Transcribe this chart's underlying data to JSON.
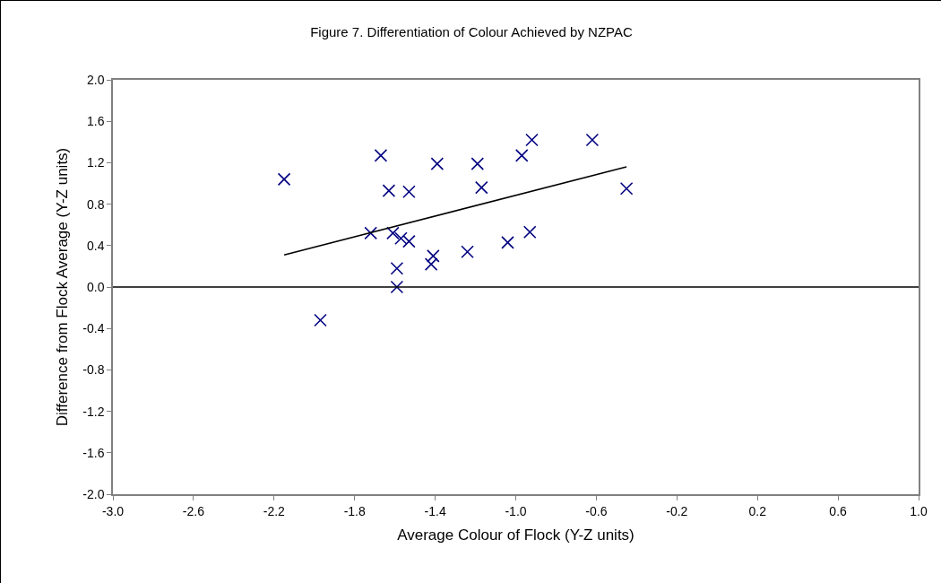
{
  "chart_data": {
    "type": "scatter",
    "title": "Figure 7. Differentiation of Colour Achieved by NZPAC",
    "xlabel": "Average Colour of Flock (Y-Z units)",
    "ylabel": "Difference from Flock Average (Y-Z units)",
    "xlim": [
      -3.0,
      1.0
    ],
    "xticks": [
      {
        "value": -3,
        "label": "-3.0"
      },
      -2.6,
      -2.2,
      -1.8,
      -1.4,
      {
        "value": -1,
        "label": "-1.0"
      },
      -0.6,
      -0.2,
      0.2,
      0.6,
      {
        "value": 1,
        "label": "1.0"
      }
    ],
    "ylim": [
      -2.0,
      2.0
    ],
    "yticks": [
      {
        "value": -2,
        "label": "-2.0"
      },
      -1.6,
      -1.2,
      -0.8,
      -0.4,
      {
        "value": 0,
        "label": "0.0"
      },
      0.4,
      0.8,
      1.2,
      1.6,
      {
        "value": 2,
        "label": "2.0"
      }
    ],
    "grid": false,
    "legend": false,
    "marker": "cross",
    "series": [
      {
        "color": "#000080",
        "x": [
          -2.15,
          -1.67,
          -1.63,
          -1.53,
          -1.39,
          -1.72,
          -1.61,
          -1.57,
          -1.53,
          -1.59,
          -1.59,
          -1.97,
          -1.41,
          -1.42,
          -1.24,
          -1.19,
          -1.17,
          -1.04,
          -0.93,
          -0.97,
          -0.92,
          -0.62,
          -0.45
        ],
        "values": [
          1.04,
          1.27,
          0.93,
          0.92,
          1.19,
          0.52,
          0.52,
          0.47,
          0.44,
          0.18,
          0.0,
          -0.32,
          0.3,
          0.22,
          0.34,
          1.19,
          0.96,
          0.43,
          0.53,
          1.27,
          1.42,
          1.42,
          0.95
        ]
      },
      {
        "type": "line",
        "color": "#000000",
        "line_style": "solid",
        "marker": "none",
        "x": [
          -2.15,
          -0.45
        ],
        "values": [
          0.31,
          1.16
        ]
      }
    ],
    "ref_lines": [
      {
        "axis": "y",
        "value": 0,
        "color": "#000000"
      }
    ]
  }
}
